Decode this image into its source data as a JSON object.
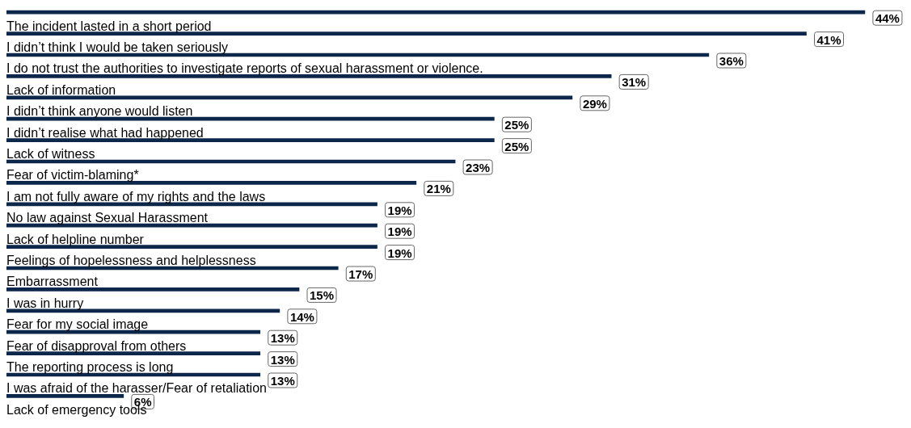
{
  "chart_data": {
    "type": "bar",
    "orientation": "horizontal",
    "categories": [
      null,
      "The incident lasted in a short period",
      "I didn’t think I would be taken seriously",
      "I do not trust the authorities to investigate reports of sexual harassment or violence.",
      "Lack of information",
      "I didn’t think anyone would listen",
      "I didn’t realise what had happened",
      "Lack of witness",
      "Fear of victim-blaming*",
      "I am not fully aware of my rights and the laws",
      "No law against Sexual Harassment",
      "Lack of helpline number",
      "Feelings of hopelessness and helplessness",
      "Embarrassment",
      "I was in hurry",
      "Fear for my social image",
      "Fear of disapproval from others",
      "The reporting process is long",
      "I was afraid of the harasser/Fear of retaliation",
      "Lack of emergency tools"
    ],
    "values": [
      44,
      41,
      36,
      31,
      29,
      25,
      25,
      23,
      21,
      19,
      19,
      19,
      17,
      15,
      14,
      13,
      13,
      13,
      6,
      null
    ],
    "value_labels": [
      "44%",
      "41%",
      "36%",
      "31%",
      "29%",
      "25%",
      "25%",
      "23%",
      "21%",
      "19%",
      "19%",
      "19%",
      "17%",
      "15%",
      "14%",
      "13%",
      "13%",
      "13%",
      "6%",
      null
    ],
    "color": "#0c2749"
  }
}
